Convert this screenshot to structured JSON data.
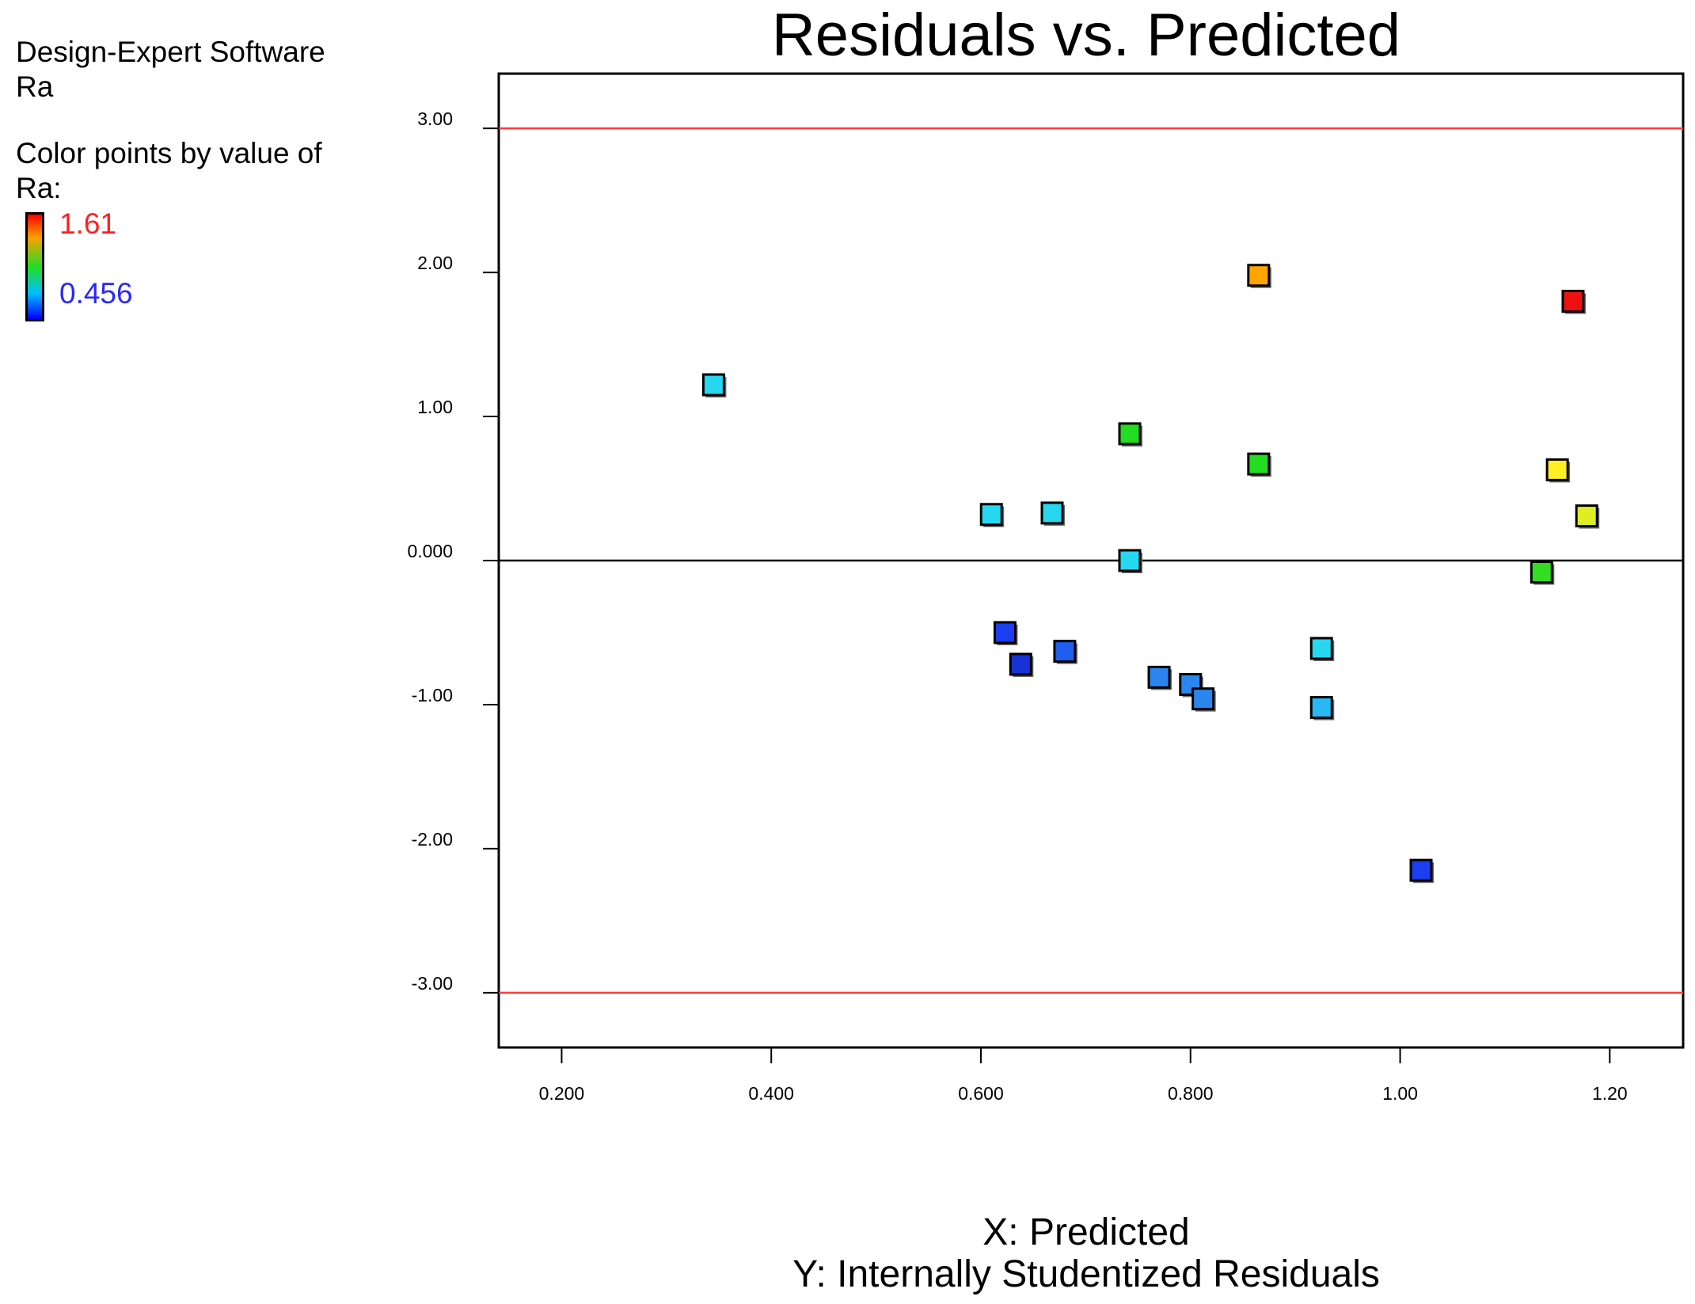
{
  "legend": {
    "software_line": "Design-Expert  Software",
    "response_line": "Ra",
    "color_by_line1": "Color points by value of",
    "color_by_line2": "Ra:",
    "max_label": "1.61",
    "min_label": "0.456",
    "max_color": "#ff2020",
    "min_color": "#2828ff"
  },
  "chart_data": {
    "type": "scatter",
    "title": "Residuals vs. Predicted",
    "xlabel": "X: Predicted",
    "ylabel": "Y: Internally Studentized Residuals",
    "xlim": [
      0.14,
      1.27
    ],
    "ylim": [
      -3.38,
      3.38
    ],
    "x_ticks": [
      0.2,
      0.4,
      0.6,
      0.8,
      1.0,
      1.2
    ],
    "x_tick_labels": [
      "0.200",
      "0.400",
      "0.600",
      "0.800",
      "1.00",
      "1.20"
    ],
    "y_ticks": [
      3,
      2,
      1,
      0,
      -1,
      -2,
      -3
    ],
    "y_tick_labels": [
      "3.00",
      "2.00",
      "1.00",
      "0.000",
      "-1.00",
      "-2.00",
      "-3.00"
    ],
    "limit_lines": [
      3,
      -3
    ],
    "limit_color": "#ff3b3b",
    "zero_line": 0,
    "points": [
      {
        "x": 0.345,
        "y": 1.22,
        "color": "#27d7f0"
      },
      {
        "x": 0.61,
        "y": 0.32,
        "color": "#27d7f0"
      },
      {
        "x": 0.668,
        "y": 0.33,
        "color": "#27d7f0"
      },
      {
        "x": 0.742,
        "y": 0.88,
        "color": "#22dd22"
      },
      {
        "x": 0.742,
        "y": 0.0,
        "color": "#27d7f0"
      },
      {
        "x": 0.865,
        "y": 1.98,
        "color": "#ffa500"
      },
      {
        "x": 0.865,
        "y": 0.67,
        "color": "#22dd22"
      },
      {
        "x": 1.165,
        "y": 1.8,
        "color": "#ee1111"
      },
      {
        "x": 1.15,
        "y": 0.63,
        "color": "#ffee22"
      },
      {
        "x": 1.178,
        "y": 0.31,
        "color": "#ddee22"
      },
      {
        "x": 1.135,
        "y": -0.08,
        "color": "#33dd22"
      },
      {
        "x": 0.623,
        "y": -0.5,
        "color": "#1a3ef0"
      },
      {
        "x": 0.638,
        "y": -0.72,
        "color": "#1633d8"
      },
      {
        "x": 0.68,
        "y": -0.63,
        "color": "#1f5ef0"
      },
      {
        "x": 0.77,
        "y": -0.81,
        "color": "#2a86ee"
      },
      {
        "x": 0.8,
        "y": -0.86,
        "color": "#2a86ee"
      },
      {
        "x": 0.812,
        "y": -0.96,
        "color": "#2a86ee"
      },
      {
        "x": 0.925,
        "y": -0.61,
        "color": "#27d7f0"
      },
      {
        "x": 0.925,
        "y": -1.02,
        "color": "#2ab8f2"
      },
      {
        "x": 1.02,
        "y": -2.15,
        "color": "#1a3ef0"
      }
    ]
  }
}
